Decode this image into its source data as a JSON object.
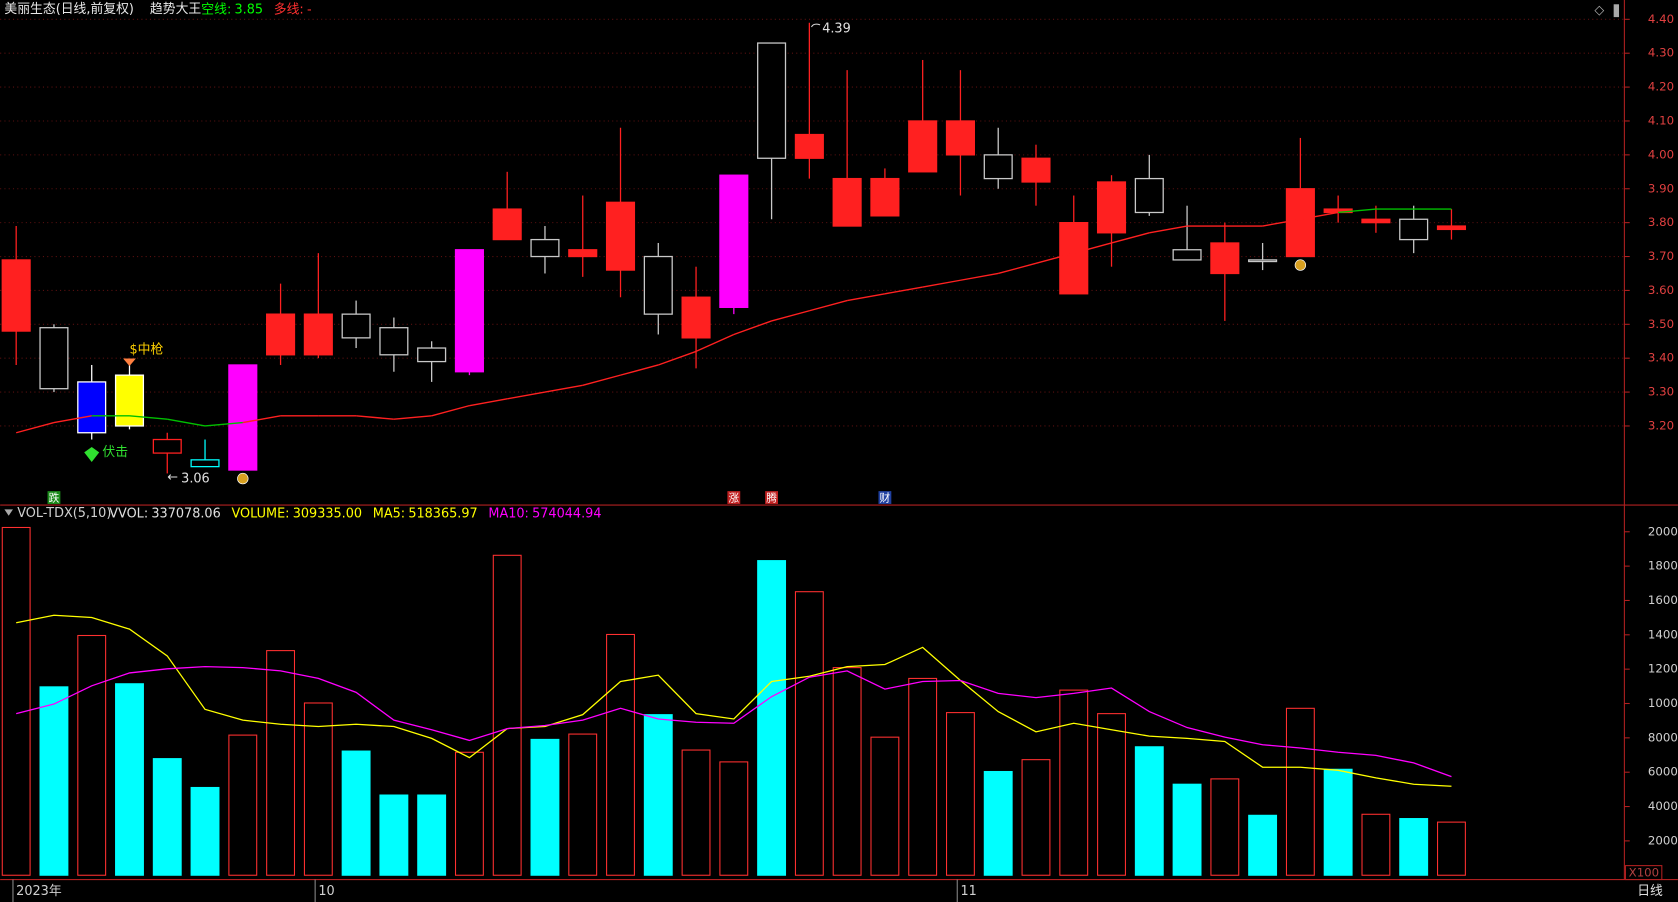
{
  "chart_data": [
    {
      "type": "candlestick",
      "title": "美丽生态(日线,前复权)",
      "indicator": "趋势大王",
      "header": [
        {
          "label": "空线:",
          "value": "3.85",
          "color": "#00ff00"
        },
        {
          "label": "多线:",
          "value": "-",
          "color": "#ff3030"
        }
      ],
      "open": [
        3.69,
        3.31,
        3.18,
        3.2,
        3.16,
        3.08,
        3.07,
        3.53,
        3.53,
        3.46,
        3.41,
        3.39,
        3.36,
        3.84,
        3.7,
        3.72,
        3.86,
        3.53,
        3.58,
        3.55,
        3.99,
        4.06,
        3.93,
        3.93,
        4.1,
        4.1,
        3.93,
        3.99,
        3.8,
        3.92,
        3.83,
        3.69,
        3.74,
        3.69,
        3.9,
        3.84,
        3.81,
        3.75,
        3.79
      ],
      "high": [
        3.79,
        3.5,
        3.38,
        3.38,
        3.18,
        3.16,
        3.38,
        3.62,
        3.71,
        3.57,
        3.52,
        3.45,
        3.72,
        3.95,
        3.79,
        3.88,
        4.08,
        3.74,
        3.67,
        3.94,
        4.33,
        4.39,
        4.25,
        3.96,
        4.28,
        4.25,
        4.08,
        4.03,
        3.88,
        3.94,
        4.0,
        3.85,
        3.8,
        3.74,
        4.05,
        3.88,
        3.85,
        3.85,
        3.84
      ],
      "low": [
        3.38,
        3.3,
        3.16,
        3.19,
        3.06,
        3.08,
        3.07,
        3.38,
        3.4,
        3.43,
        3.36,
        3.33,
        3.35,
        3.75,
        3.65,
        3.64,
        3.58,
        3.47,
        3.37,
        3.53,
        3.81,
        3.93,
        3.79,
        3.82,
        3.95,
        3.88,
        3.9,
        3.85,
        3.59,
        3.67,
        3.82,
        3.69,
        3.51,
        3.66,
        3.7,
        3.8,
        3.77,
        3.71,
        3.75
      ],
      "close": [
        3.48,
        3.49,
        3.33,
        3.35,
        3.12,
        3.1,
        3.38,
        3.41,
        3.41,
        3.53,
        3.49,
        3.43,
        3.72,
        3.75,
        3.75,
        3.7,
        3.66,
        3.7,
        3.46,
        3.94,
        4.33,
        3.99,
        3.79,
        3.82,
        3.95,
        4.0,
        4.0,
        3.92,
        3.59,
        3.77,
        3.93,
        3.72,
        3.65,
        3.69,
        3.7,
        3.83,
        3.8,
        3.81,
        3.78
      ],
      "fill_colors": [
        "#ff2020",
        "#000000",
        "#0000ff",
        "#ffff00",
        "#000000",
        "#000000",
        "#ff00ff",
        "#ff2020",
        "#ff2020",
        "#000000",
        "#000000",
        "#000000",
        "#ff00ff",
        "#ff2020",
        "#000000",
        "#ff2020",
        "#ff2020",
        "#000000",
        "#ff2020",
        "#ff00ff",
        "#000000",
        "#ff2020",
        "#ff2020",
        "#ff2020",
        "#ff2020",
        "#ff2020",
        "#000000",
        "#ff2020",
        "#ff2020",
        "#ff2020",
        "#000000",
        "#000000",
        "#ff2020",
        "#000000",
        "#ff2020",
        "#ff2020",
        "#ff2020",
        "#000000",
        "#ff2020"
      ],
      "edge_colors": [
        "#ff2020",
        "#c8c8c8",
        "#ffffff",
        "#ffffff",
        "#ff2020",
        "#00ffff",
        "#ff00ff",
        "#ff2020",
        "#ff2020",
        "#c8c8c8",
        "#c8c8c8",
        "#c8c8c8",
        "#ff00ff",
        "#ff2020",
        "#c8c8c8",
        "#ff2020",
        "#ff2020",
        "#c8c8c8",
        "#ff2020",
        "#ff00ff",
        "#c8c8c8",
        "#ff2020",
        "#ff2020",
        "#ff2020",
        "#ff2020",
        "#ff2020",
        "#c8c8c8",
        "#ff2020",
        "#ff2020",
        "#ff2020",
        "#c8c8c8",
        "#c8c8c8",
        "#ff2020",
        "#c8c8c8",
        "#ff2020",
        "#ff2020",
        "#ff2020",
        "#c8c8c8",
        "#ff2020"
      ],
      "ma": {
        "values": [
          3.18,
          3.21,
          3.23,
          3.23,
          3.22,
          3.2,
          3.21,
          3.23,
          3.23,
          3.23,
          3.22,
          3.23,
          3.26,
          3.28,
          3.3,
          3.32,
          3.35,
          3.38,
          3.42,
          3.47,
          3.51,
          3.54,
          3.57,
          3.59,
          3.61,
          3.63,
          3.65,
          3.68,
          3.71,
          3.74,
          3.77,
          3.79,
          3.79,
          3.79,
          3.81,
          3.83,
          3.84,
          3.84,
          3.84
        ],
        "colors": [
          "#ff2020",
          "#ff2020",
          "#ff2020",
          "#00c000",
          "#00c000",
          "#00c000",
          "#00c000",
          "#ff2020",
          "#ff2020",
          "#ff2020",
          "#ff2020",
          "#ff2020",
          "#ff2020",
          "#ff2020",
          "#ff2020",
          "#ff2020",
          "#ff2020",
          "#ff2020",
          "#ff2020",
          "#ff2020",
          "#ff2020",
          "#ff2020",
          "#ff2020",
          "#ff2020",
          "#ff2020",
          "#ff2020",
          "#ff2020",
          "#ff2020",
          "#ff2020",
          "#ff2020",
          "#ff2020",
          "#ff2020",
          "#ff2020",
          "#ff2020",
          "#ff2020",
          "#ff2020",
          "#00c000",
          "#00c000",
          "#00c000"
        ]
      },
      "signals": [
        null,
        {
          "text": "跌",
          "color": "#1a8a1a"
        },
        null,
        null,
        null,
        null,
        null,
        null,
        null,
        null,
        null,
        null,
        null,
        null,
        null,
        null,
        null,
        null,
        null,
        {
          "text": "涨",
          "color": "#c02020"
        },
        {
          "text": "腾",
          "color": "#c02020"
        },
        null,
        null,
        {
          "text": "财",
          "color": "#2040a0"
        },
        null,
        null,
        null,
        null,
        null,
        null,
        null,
        null,
        null,
        null,
        null,
        null,
        null,
        null,
        null
      ],
      "top_notes": [
        null,
        null,
        null,
        "$中枪",
        null,
        null,
        null,
        null,
        null,
        null,
        null,
        null,
        null,
        null,
        null,
        null,
        null,
        null,
        null,
        null,
        null,
        null,
        null,
        null,
        null,
        null,
        null,
        null,
        null,
        null,
        null,
        null,
        null,
        null,
        null,
        null,
        null,
        null,
        null
      ],
      "bottom_notes": [
        null,
        null,
        "伏击",
        null,
        null,
        null,
        null,
        null,
        null,
        null,
        null,
        null,
        null,
        null,
        null,
        null,
        null,
        null,
        null,
        null,
        null,
        null,
        null,
        null,
        null,
        null,
        null,
        null,
        null,
        null,
        null,
        null,
        null,
        null,
        null,
        null,
        null,
        null,
        null
      ],
      "ylim": [
        2.973,
        4.457
      ],
      "yticks": [
        {
          "value": 3.2,
          "label": "3.20"
        },
        {
          "value": 3.3,
          "label": "3.30"
        },
        {
          "value": 3.4,
          "label": "3.40"
        },
        {
          "value": 3.5,
          "label": "3.50"
        },
        {
          "value": 3.6,
          "label": "3.60"
        },
        {
          "value": 3.7,
          "label": "3.70"
        },
        {
          "value": 3.8,
          "label": "3.80"
        },
        {
          "value": 3.9,
          "label": "3.90"
        },
        {
          "value": 4.0,
          "label": "4.00"
        },
        {
          "value": 4.1,
          "label": "4.10"
        },
        {
          "value": 4.2,
          "label": "4.20"
        },
        {
          "value": 4.3,
          "label": "4.30"
        },
        {
          "value": 4.4,
          "label": "4.40"
        }
      ],
      "grid": true
    },
    {
      "type": "bar",
      "title": "VOL-TDX(5,10)",
      "header": [
        {
          "label": "VVOL:",
          "value": "337078.06",
          "color": "#e0e0e0"
        },
        {
          "label": "VOLUME:",
          "value": "309335.00",
          "color": "#ffff00"
        },
        {
          "label": "MA5:",
          "value": "518365.97",
          "color": "#ffff00"
        },
        {
          "label": "MA10:",
          "value": "574044.94",
          "color": "#ff00ff"
        }
      ],
      "categories": [
        "2023年",
        null,
        null,
        null,
        null,
        null,
        null,
        null,
        "10",
        null,
        null,
        null,
        null,
        null,
        null,
        null,
        null,
        null,
        null,
        null,
        null,
        null,
        null,
        null,
        null,
        "11",
        null,
        null,
        null,
        null,
        null,
        null,
        null,
        null,
        null,
        null,
        null,
        null,
        null
      ],
      "values": [
        20250,
        10970,
        13960,
        11150,
        6790,
        5110,
        8160,
        13080,
        10030,
        7230,
        4670,
        4670,
        7160,
        18630,
        7910,
        8220,
        14020,
        9350,
        7290,
        6600,
        18320,
        16510,
        12090,
        8040,
        11460,
        9470,
        6040,
        6730,
        10780,
        9410,
        7480,
        5300,
        5610,
        3490,
        9720,
        6170,
        3550,
        3300,
        3093.35
      ],
      "fill_colors": [
        "#000000",
        "#00ffff",
        "#000000",
        "#00ffff",
        "#00ffff",
        "#00ffff",
        "#000000",
        "#000000",
        "#000000",
        "#00ffff",
        "#00ffff",
        "#00ffff",
        "#000000",
        "#000000",
        "#00ffff",
        "#000000",
        "#000000",
        "#00ffff",
        "#000000",
        "#000000",
        "#00ffff",
        "#000000",
        "#000000",
        "#000000",
        "#000000",
        "#000000",
        "#00ffff",
        "#000000",
        "#000000",
        "#000000",
        "#00ffff",
        "#00ffff",
        "#000000",
        "#00ffff",
        "#000000",
        "#00ffff",
        "#000000",
        "#00ffff",
        "#000000"
      ],
      "edge_colors": [
        "#ff3030",
        "#00ffff",
        "#ff3030",
        "#00ffff",
        "#00ffff",
        "#00ffff",
        "#ff3030",
        "#ff3030",
        "#ff3030",
        "#00ffff",
        "#00ffff",
        "#00ffff",
        "#ff3030",
        "#ff3030",
        "#00ffff",
        "#ff3030",
        "#ff3030",
        "#00ffff",
        "#ff3030",
        "#ff3030",
        "#00ffff",
        "#ff3030",
        "#ff3030",
        "#ff3030",
        "#ff3030",
        "#ff3030",
        "#00ffff",
        "#ff3030",
        "#ff3030",
        "#ff3030",
        "#00ffff",
        "#00ffff",
        "#ff3030",
        "#00ffff",
        "#ff3030",
        "#00ffff",
        "#ff3030",
        "#00ffff",
        "#ff3030"
      ],
      "series": [
        {
          "color": "#ffff00",
          "values": [
            14700,
            15140,
            15010,
            14330,
            12770,
            9660,
            9030,
            8790,
            8660,
            8790,
            8660,
            7970,
            6850,
            8540,
            8660,
            9350,
            11280,
            11650,
            9410,
            9100,
            11280,
            11590,
            12150,
            12270,
            13270,
            11340,
            9530,
            8350,
            8850,
            8470,
            8100,
            7970,
            7790,
            6290,
            6290,
            6110,
            5670,
            5300,
            5184
          ]
        },
        {
          "color": "#ff00ff",
          "values": [
            9410,
            9970,
            11030,
            11780,
            12020,
            12150,
            12090,
            11900,
            11460,
            10650,
            9030,
            8470,
            7850,
            8540,
            8720,
            9030,
            9720,
            9100,
            8910,
            8850,
            10400,
            11530,
            11900,
            10840,
            11280,
            11340,
            10590,
            10340,
            10590,
            10900,
            9530,
            8600,
            8040,
            7600,
            7410,
            7160,
            6980,
            6540,
            5740
          ]
        }
      ],
      "ylim": [
        -250,
        20560
      ],
      "yticks": [
        2000,
        4000,
        6000,
        8000,
        10000,
        12000,
        14000,
        16000,
        18000,
        20000
      ],
      "unit": "X100",
      "period": "日线",
      "grid": false
    }
  ]
}
